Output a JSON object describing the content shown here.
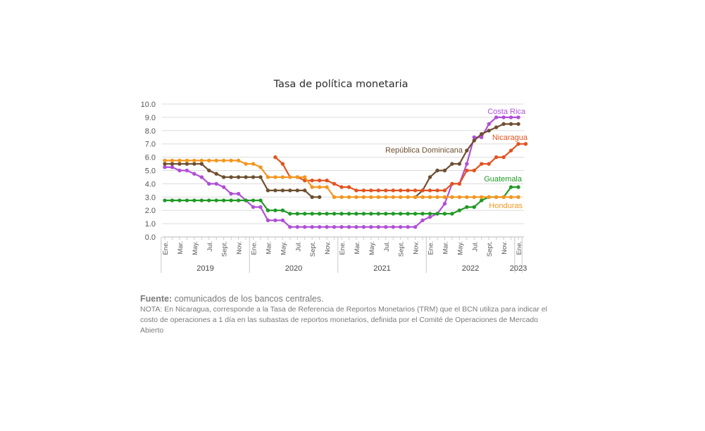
{
  "chart_data": {
    "type": "line",
    "title": "Tasa de política monetaria",
    "ylim": [
      0,
      10
    ],
    "yticks": [
      "0.0",
      "1.0",
      "2.0",
      "3.0",
      "4.0",
      "5.0",
      "6.0",
      "7.0",
      "8.0",
      "9.0",
      "10.0"
    ],
    "x_tick_labels": [
      "Ene.",
      "Mar.",
      "May.",
      "Jul.",
      "Sept.",
      "Nov.",
      "Ene.",
      "Mar.",
      "May.",
      "Jul.",
      "Sept.",
      "Nov.",
      "Ene.",
      "Mar.",
      "May.",
      "Jul.",
      "Sept.",
      "Nov.",
      "Ene.",
      "Mar.",
      "May.",
      "Jul.",
      "Sept.",
      "Nov.",
      "Ene."
    ],
    "years": [
      {
        "label": "2019",
        "start": 0,
        "end": 12
      },
      {
        "label": "2020",
        "start": 12,
        "end": 24
      },
      {
        "label": "2021",
        "start": 24,
        "end": 36
      },
      {
        "label": "2022",
        "start": 36,
        "end": 48
      },
      {
        "label": "2023",
        "start": 48,
        "end": 49
      }
    ],
    "n_points": 49,
    "grid": true,
    "series": [
      {
        "name": "Costa Rica",
        "color": "#b04fd6",
        "start": 0,
        "values": [
          5.25,
          5.25,
          5.0,
          5.0,
          4.75,
          4.5,
          4.0,
          4.0,
          3.75,
          3.25,
          3.25,
          2.75,
          2.25,
          2.25,
          1.25,
          1.25,
          1.25,
          0.75,
          0.75,
          0.75,
          0.75,
          0.75,
          0.75,
          0.75,
          0.75,
          0.75,
          0.75,
          0.75,
          0.75,
          0.75,
          0.75,
          0.75,
          0.75,
          0.75,
          0.75,
          1.25,
          1.5,
          1.75,
          2.5,
          4.0,
          4.0,
          5.5,
          7.5,
          7.5,
          8.5,
          9.0,
          9.0,
          9.0,
          9.0
        ]
      },
      {
        "name": "República Dominicana",
        "color": "#6e4f30",
        "start": 0,
        "values": [
          5.5,
          5.5,
          5.5,
          5.5,
          5.5,
          5.5,
          5.0,
          4.75,
          4.5,
          4.5,
          4.5,
          4.5,
          4.5,
          4.5,
          3.5,
          3.5,
          3.5,
          3.5,
          3.5,
          3.5,
          3.0,
          3.0,
          null,
          null,
          null,
          null,
          null,
          null,
          null,
          null,
          null,
          null,
          null,
          null,
          3.0,
          3.5,
          4.5,
          5.0,
          5.0,
          5.5,
          5.5,
          6.5,
          7.25,
          7.75,
          8.0,
          8.25,
          8.5,
          8.5,
          8.5
        ]
      },
      {
        "name": "Nicaragua",
        "color": "#e2531f",
        "start": 15,
        "values": [
          6.0,
          5.5,
          4.5,
          4.5,
          4.25,
          4.25,
          4.25,
          4.25,
          4.0,
          3.75,
          3.75,
          3.5,
          3.5,
          3.5,
          3.5,
          3.5,
          3.5,
          3.5,
          3.5,
          3.5,
          3.5,
          3.5,
          3.5,
          3.5,
          4.0,
          4.0,
          5.0,
          5.0,
          5.5,
          5.5,
          6.0,
          6.0,
          6.5,
          7.0,
          7.0
        ]
      },
      {
        "name": "Guatemala",
        "color": "#1f9a24",
        "start": 0,
        "values": [
          2.75,
          2.75,
          2.75,
          2.75,
          2.75,
          2.75,
          2.75,
          2.75,
          2.75,
          2.75,
          2.75,
          2.75,
          2.75,
          2.75,
          2.0,
          2.0,
          2.0,
          1.75,
          1.75,
          1.75,
          1.75,
          1.75,
          1.75,
          1.75,
          1.75,
          1.75,
          1.75,
          1.75,
          1.75,
          1.75,
          1.75,
          1.75,
          1.75,
          1.75,
          1.75,
          1.75,
          1.75,
          1.75,
          1.75,
          1.75,
          2.0,
          2.25,
          2.25,
          2.75,
          3.0,
          3.0,
          3.0,
          3.75,
          3.75
        ]
      },
      {
        "name": "Honduras",
        "color": "#f4961e",
        "start": 0,
        "values": [
          5.75,
          5.75,
          5.75,
          5.75,
          5.75,
          5.75,
          5.75,
          5.75,
          5.75,
          5.75,
          5.75,
          5.5,
          5.5,
          5.25,
          4.5,
          4.5,
          4.5,
          4.5,
          4.5,
          4.5,
          3.75,
          3.75,
          3.75,
          3.0,
          3.0,
          3.0,
          3.0,
          3.0,
          3.0,
          3.0,
          3.0,
          3.0,
          3.0,
          3.0,
          3.0,
          3.0,
          3.0,
          3.0,
          3.0,
          3.0,
          3.0,
          3.0,
          3.0,
          3.0,
          3.0,
          3.0,
          3.0,
          3.0,
          3.0
        ]
      }
    ]
  },
  "footer": {
    "source_label": "Fuente:",
    "source_text": " comunicados de los bancos centrales.",
    "note": "NOTA: En Nicaragua, corresponde a la Tasa de Referencia de Reportos Monetarios (TRM) que el BCN utiliza para indicar el costo de operaciones a 1 día en las subastas de reportos monetarios, definida por el Comité de Operaciones de Mercado Abierto"
  }
}
